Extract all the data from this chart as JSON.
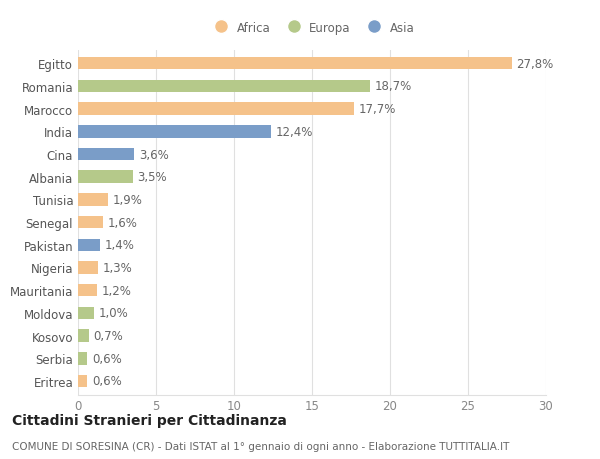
{
  "categories": [
    "Egitto",
    "Romania",
    "Marocco",
    "India",
    "Cina",
    "Albania",
    "Tunisia",
    "Senegal",
    "Pakistan",
    "Nigeria",
    "Mauritania",
    "Moldova",
    "Kosovo",
    "Serbia",
    "Eritrea"
  ],
  "values": [
    27.8,
    18.7,
    17.7,
    12.4,
    3.6,
    3.5,
    1.9,
    1.6,
    1.4,
    1.3,
    1.2,
    1.0,
    0.7,
    0.6,
    0.6
  ],
  "labels": [
    "27,8%",
    "18,7%",
    "17,7%",
    "12,4%",
    "3,6%",
    "3,5%",
    "1,9%",
    "1,6%",
    "1,4%",
    "1,3%",
    "1,2%",
    "1,0%",
    "0,7%",
    "0,6%",
    "0,6%"
  ],
  "continents": [
    "Africa",
    "Europa",
    "Africa",
    "Asia",
    "Asia",
    "Europa",
    "Africa",
    "Africa",
    "Asia",
    "Africa",
    "Africa",
    "Europa",
    "Europa",
    "Europa",
    "Africa"
  ],
  "colors": {
    "Africa": "#F5C28A",
    "Europa": "#B5C98A",
    "Asia": "#7A9DC8"
  },
  "legend_items": [
    "Africa",
    "Europa",
    "Asia"
  ],
  "xlim": [
    0,
    30
  ],
  "xticks": [
    0,
    5,
    10,
    15,
    20,
    25,
    30
  ],
  "title": "Cittadini Stranieri per Cittadinanza",
  "subtitle": "COMUNE DI SORESINA (CR) - Dati ISTAT al 1° gennaio di ogni anno - Elaborazione TUTTITALIA.IT",
  "bar_height": 0.55,
  "background_color": "#ffffff",
  "grid_color": "#e0e0e0",
  "label_fontsize": 8.5,
  "tick_fontsize": 8.5,
  "title_fontsize": 10,
  "subtitle_fontsize": 7.5
}
